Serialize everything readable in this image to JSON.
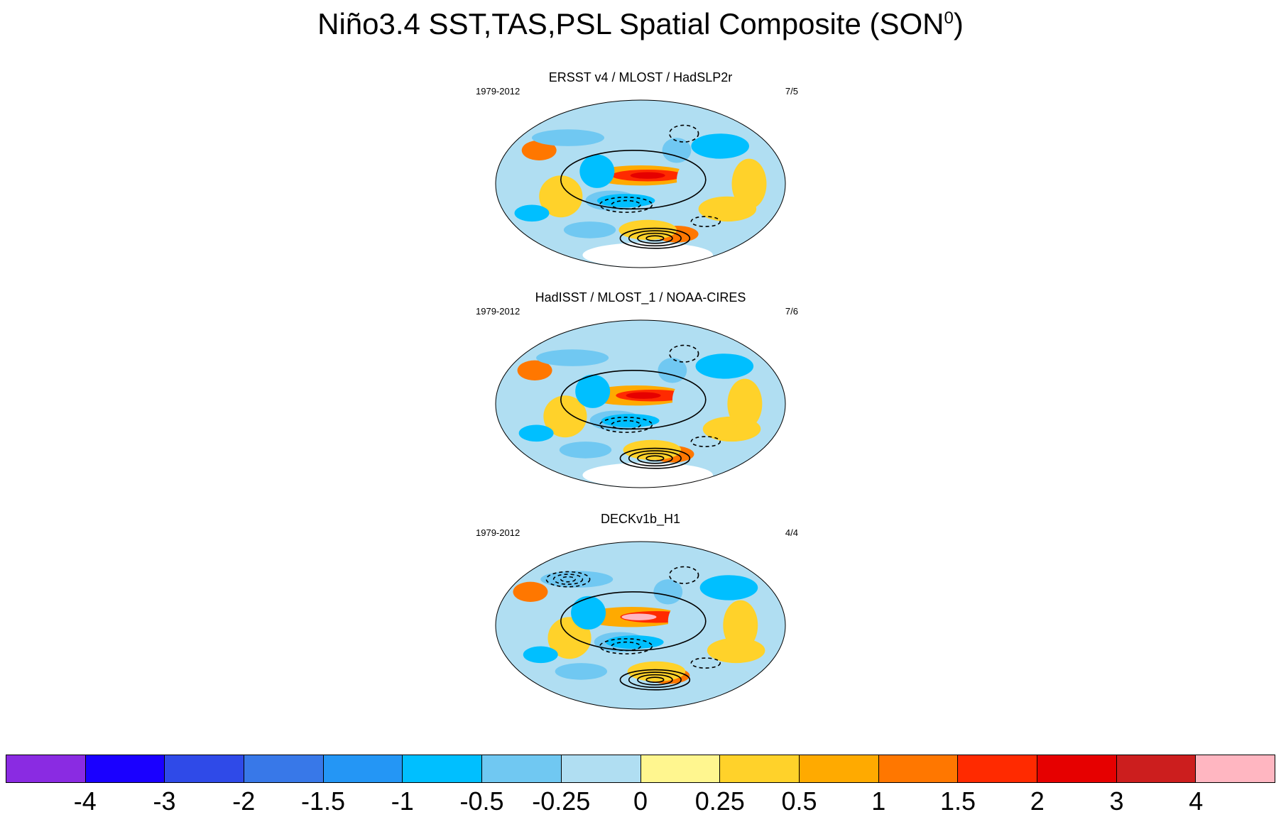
{
  "title": {
    "main": "Niño3.4 SST,TAS,PSL Spatial Composite (SON",
    "superscript": "0",
    "close": ")"
  },
  "chart_data": {
    "type": "heatmap",
    "projection": "Robinson (global, Pacific-centered)",
    "variable_shading": "SST/TAS composite anomaly",
    "variable_contours": "PSL composite anomaly (solid positive, dashed negative)",
    "panels": [
      {
        "title": "ERSST v4 / MLOST / HadSLP2r",
        "period": "1979-2012",
        "ratio": "7/5"
      },
      {
        "title": "HadISST / MLOST_1 / NOAA-CIRES",
        "period": "1979-2012",
        "ratio": "7/6"
      },
      {
        "title": "DECKv1b_H1",
        "period": "1979-2012",
        "ratio": "4/4"
      }
    ],
    "colorbar": {
      "levels": [
        "-4",
        "-3",
        "-2",
        "-1.5",
        "-1",
        "-0.5",
        "-0.25",
        "0",
        "0.25",
        "0.5",
        "1",
        "1.5",
        "2",
        "3",
        "4"
      ],
      "colors": [
        "#8a2be2",
        "#1a00ff",
        "#2f4ae8",
        "#3878e8",
        "#2496f5",
        "#00bfff",
        "#70c8f2",
        "#b0def2",
        "#fff68f",
        "#ffd22a",
        "#ffaa00",
        "#ff7700",
        "#ff2a00",
        "#e60000",
        "#cc1e1e",
        "#ffb6c1"
      ]
    }
  }
}
